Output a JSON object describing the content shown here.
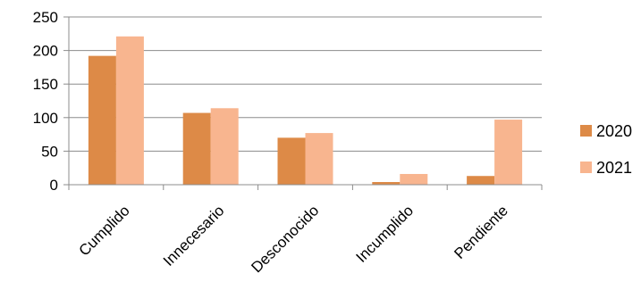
{
  "chart_data": {
    "type": "bar",
    "title": "",
    "xlabel": "",
    "ylabel": "",
    "categories": [
      "Cumplido",
      "Innecesario",
      "Desconocido",
      "Incumplido",
      "Pendiente"
    ],
    "series": [
      {
        "name": "2020",
        "color": "#dd8a47",
        "values": [
          192,
          107,
          70,
          4,
          13
        ]
      },
      {
        "name": "2021",
        "color": "#f8b58f",
        "values": [
          221,
          114,
          77,
          16,
          97
        ]
      }
    ],
    "ylim": [
      0,
      250
    ],
    "yticks": [
      "0",
      "50",
      "100",
      "150",
      "200",
      "250"
    ],
    "grid": true,
    "legend_position": "right"
  }
}
